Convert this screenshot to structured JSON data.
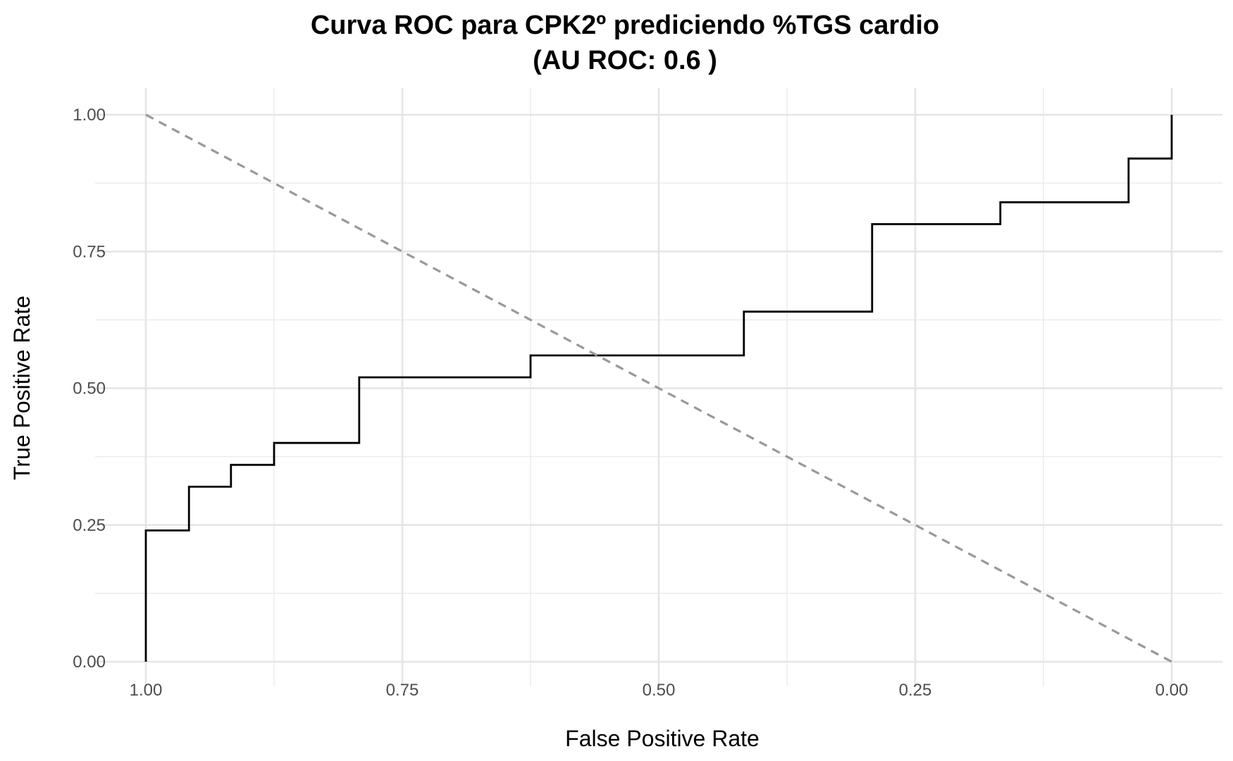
{
  "chart_data": {
    "type": "line",
    "title_line1": "Curva ROC para CPK2º prediciendo %TGS cardio",
    "title_line2": "(AU ROC: 0.6 )",
    "xlabel": "False Positive Rate",
    "ylabel": "True Positive Rate",
    "x_reversed": true,
    "xlim": [
      1.0,
      0.0
    ],
    "ylim": [
      0.0,
      1.0
    ],
    "x_ticks": [
      1.0,
      0.75,
      0.5,
      0.25,
      0.0
    ],
    "x_tick_labels": [
      "1.00",
      "0.75",
      "0.50",
      "0.25",
      "0.00"
    ],
    "x_minor_ticks": [
      0.875,
      0.625,
      0.375,
      0.125
    ],
    "y_ticks": [
      0.0,
      0.25,
      0.5,
      0.75,
      1.0
    ],
    "y_tick_labels": [
      "0.00",
      "0.25",
      "0.50",
      "0.75",
      "1.00"
    ],
    "y_minor_ticks": [
      0.125,
      0.375,
      0.625,
      0.875
    ],
    "grid": true,
    "series": [
      {
        "kind": "step",
        "color": "#000000",
        "x": [
          1.0,
          1.0,
          0.958,
          0.958,
          0.917,
          0.917,
          0.875,
          0.875,
          0.792,
          0.792,
          0.625,
          0.625,
          0.417,
          0.417,
          0.292,
          0.292,
          0.167,
          0.167,
          0.042,
          0.042,
          0.0,
          0.0
        ],
        "y": [
          0.0,
          0.24,
          0.24,
          0.32,
          0.32,
          0.36,
          0.36,
          0.4,
          0.4,
          0.52,
          0.52,
          0.56,
          0.56,
          0.64,
          0.64,
          0.8,
          0.8,
          0.84,
          0.84,
          0.92,
          0.92,
          1.0
        ]
      },
      {
        "kind": "reference-diagonal",
        "color": "#999999",
        "dashed": true,
        "x": [
          1.0,
          0.0
        ],
        "y": [
          1.0,
          0.0
        ]
      }
    ]
  }
}
